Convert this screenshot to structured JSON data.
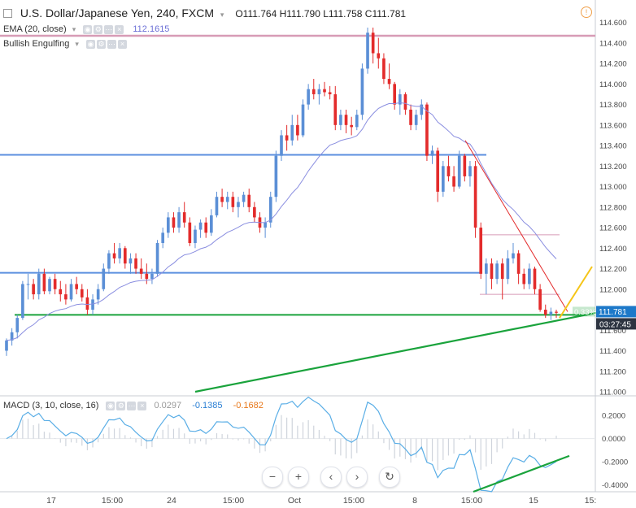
{
  "header": {
    "collapse_icon": "collapse-square-icon",
    "symbol_title": "U.S. Dollar/Japanese Yen, 240, FXCM",
    "ohlc": "O111.764  H111.790  L111.758  C111.781",
    "alert_icon": "clock-alert-icon",
    "alert_glyph": "!"
  },
  "indicators": {
    "ema_label": "EMA (20, close)",
    "ema_value": "112.1615",
    "bullish_label": "Bullish Engulfing",
    "macd_label": "MACD (3, 10, close, 16)",
    "macd_values": [
      "0.0297",
      "-0.1385",
      "-0.1682"
    ]
  },
  "colors": {
    "up": "#5b8fd6",
    "down": "#e32b2b",
    "ema": "#8a8ee0",
    "hline_blue": "#5b8fdf",
    "hline_pink": "#d79bb6",
    "hline_green": "#1aa33c",
    "trend_green": "#1aa33c",
    "trend_red": "#e32b2b",
    "trend_yellow": "#f5c518",
    "macd_line": "#5aaee6",
    "macd_hist": "#cfd4dc",
    "price_label_bg": "#1d79c9",
    "dark_label_bg": "#2d3441"
  },
  "price_axis": {
    "labels": [
      "114.600",
      "114.400",
      "114.200",
      "114.000",
      "113.800",
      "113.600",
      "113.400",
      "113.200",
      "113.000",
      "112.800",
      "112.600",
      "112.400",
      "112.200",
      "112.000",
      "111.800",
      "111.600",
      "111.400",
      "111.200",
      "111.000"
    ],
    "current_price": "111.781",
    "countdown": "03:27:45",
    "pct_label": "0.33%"
  },
  "macd_axis": {
    "labels": [
      "0.2000",
      "0.0000",
      "-0.2000",
      "-0.4000"
    ]
  },
  "time_axis": {
    "labels": [
      "17",
      "15:00",
      "24",
      "15:00",
      "Oct",
      "15:00",
      "8",
      "15:00",
      "15",
      "15:"
    ]
  },
  "navigation": {
    "zoom_out": "−",
    "zoom_in": "+",
    "scroll_left": "‹",
    "scroll_right": "›",
    "reset": "↻"
  },
  "chart_data": {
    "type": "candlestick",
    "title": "U.S. Dollar/Japanese Yen, 240, FXCM",
    "ylim": [
      111.0,
      114.7
    ],
    "ohlc": [
      [
        111.4,
        111.52,
        111.35,
        111.5
      ],
      [
        111.5,
        111.62,
        111.45,
        111.58
      ],
      [
        111.58,
        111.75,
        111.52,
        111.72
      ],
      [
        111.72,
        112.08,
        111.7,
        112.05
      ],
      [
        112.05,
        112.15,
        111.9,
        112.05
      ],
      [
        112.05,
        112.1,
        111.9,
        111.95
      ],
      [
        111.95,
        112.2,
        111.9,
        112.15
      ],
      [
        112.15,
        112.2,
        111.95,
        111.98
      ],
      [
        111.98,
        112.12,
        111.95,
        112.1
      ],
      [
        112.1,
        112.15,
        111.95,
        112.0
      ],
      [
        112.0,
        112.08,
        111.88,
        111.95
      ],
      [
        111.95,
        112.05,
        111.85,
        111.9
      ],
      [
        111.9,
        112.1,
        111.88,
        112.05
      ],
      [
        112.05,
        112.12,
        111.95,
        112.0
      ],
      [
        112.0,
        112.05,
        111.88,
        111.92
      ],
      [
        111.92,
        112.0,
        111.75,
        111.8
      ],
      [
        111.8,
        111.95,
        111.75,
        111.9
      ],
      [
        111.9,
        112.05,
        111.85,
        112.0
      ],
      [
        112.0,
        112.25,
        111.98,
        112.2
      ],
      [
        112.2,
        112.38,
        112.15,
        112.35
      ],
      [
        112.35,
        112.45,
        112.25,
        112.3
      ],
      [
        112.3,
        112.45,
        112.25,
        112.4
      ],
      [
        112.4,
        112.42,
        112.2,
        112.25
      ],
      [
        112.25,
        112.35,
        112.15,
        112.3
      ],
      [
        112.3,
        112.35,
        112.15,
        112.2
      ],
      [
        112.2,
        112.3,
        112.1,
        112.15
      ],
      [
        112.15,
        112.25,
        112.05,
        112.1
      ],
      [
        112.1,
        112.2,
        112.05,
        112.15
      ],
      [
        112.15,
        112.48,
        112.12,
        112.45
      ],
      [
        112.45,
        112.6,
        112.4,
        112.55
      ],
      [
        112.55,
        112.75,
        112.5,
        112.7
      ],
      [
        112.7,
        112.75,
        112.55,
        112.6
      ],
      [
        112.6,
        112.8,
        112.55,
        112.75
      ],
      [
        112.75,
        112.85,
        112.6,
        112.65
      ],
      [
        112.65,
        112.7,
        112.42,
        112.45
      ],
      [
        112.45,
        112.62,
        112.4,
        112.58
      ],
      [
        112.58,
        112.68,
        112.5,
        112.65
      ],
      [
        112.65,
        112.7,
        112.5,
        112.55
      ],
      [
        112.55,
        112.78,
        112.52,
        112.72
      ],
      [
        112.72,
        112.95,
        112.7,
        112.9
      ],
      [
        112.9,
        112.98,
        112.8,
        112.85
      ],
      [
        112.85,
        112.95,
        112.78,
        112.9
      ],
      [
        112.9,
        112.95,
        112.75,
        112.8
      ],
      [
        112.8,
        112.9,
        112.7,
        112.85
      ],
      [
        112.85,
        112.95,
        112.8,
        112.92
      ],
      [
        112.92,
        112.98,
        112.75,
        112.8
      ],
      [
        112.8,
        112.85,
        112.65,
        112.7
      ],
      [
        112.7,
        112.75,
        112.55,
        112.6
      ],
      [
        112.6,
        112.7,
        112.5,
        112.65
      ],
      [
        112.65,
        112.95,
        112.6,
        112.9
      ],
      [
        112.9,
        113.35,
        112.85,
        113.3
      ],
      [
        113.3,
        113.55,
        113.25,
        113.5
      ],
      [
        113.5,
        113.6,
        113.35,
        113.45
      ],
      [
        113.45,
        113.7,
        113.4,
        113.6
      ],
      [
        113.6,
        113.7,
        113.45,
        113.5
      ],
      [
        113.5,
        113.85,
        113.48,
        113.8
      ],
      [
        113.8,
        114.0,
        113.75,
        113.95
      ],
      [
        113.95,
        114.05,
        113.85,
        113.9
      ],
      [
        113.9,
        114.0,
        113.8,
        113.95
      ],
      [
        113.95,
        114.02,
        113.88,
        113.92
      ],
      [
        113.92,
        113.98,
        113.85,
        113.9
      ],
      [
        113.9,
        113.98,
        113.55,
        113.6
      ],
      [
        113.6,
        113.75,
        113.55,
        113.7
      ],
      [
        113.7,
        113.75,
        113.52,
        113.6
      ],
      [
        113.6,
        113.68,
        113.5,
        113.58
      ],
      [
        113.58,
        113.75,
        113.55,
        113.7
      ],
      [
        113.7,
        114.2,
        113.65,
        114.15
      ],
      [
        114.15,
        114.55,
        114.1,
        114.5
      ],
      [
        114.5,
        114.55,
        114.2,
        114.3
      ],
      [
        114.3,
        114.45,
        114.15,
        114.25
      ],
      [
        114.25,
        114.3,
        114.0,
        114.05
      ],
      [
        114.05,
        114.2,
        113.95,
        114.0
      ],
      [
        114.0,
        114.02,
        113.75,
        113.8
      ],
      [
        113.8,
        113.95,
        113.7,
        113.9
      ],
      [
        113.9,
        113.92,
        113.7,
        113.75
      ],
      [
        113.75,
        113.8,
        113.55,
        113.6
      ],
      [
        113.6,
        113.75,
        113.55,
        113.7
      ],
      [
        113.7,
        113.85,
        113.65,
        113.8
      ],
      [
        113.8,
        113.82,
        113.25,
        113.3
      ],
      [
        113.3,
        113.4,
        113.22,
        113.35
      ],
      [
        113.35,
        113.38,
        112.85,
        112.95
      ],
      [
        112.95,
        113.25,
        112.9,
        113.2
      ],
      [
        113.2,
        113.3,
        113.05,
        113.1
      ],
      [
        113.1,
        113.2,
        112.95,
        113.0
      ],
      [
        113.0,
        113.35,
        112.98,
        113.3
      ],
      [
        113.3,
        113.32,
        113.05,
        113.1
      ],
      [
        113.1,
        113.25,
        113.0,
        113.2
      ],
      [
        113.2,
        113.25,
        112.5,
        112.6
      ],
      [
        112.6,
        112.65,
        112.1,
        112.15
      ],
      [
        112.15,
        112.3,
        111.95,
        112.25
      ],
      [
        112.25,
        112.3,
        112.0,
        112.1
      ],
      [
        112.1,
        112.28,
        112.05,
        112.25
      ],
      [
        112.25,
        112.3,
        111.9,
        112.1
      ],
      [
        112.1,
        112.38,
        112.05,
        112.3
      ],
      [
        112.3,
        112.45,
        112.25,
        112.35
      ],
      [
        112.35,
        112.38,
        112.05,
        112.15
      ],
      [
        112.15,
        112.2,
        112.0,
        112.05
      ],
      [
        112.05,
        112.25,
        112.0,
        112.2
      ],
      [
        112.2,
        112.22,
        111.95,
        112.0
      ],
      [
        112.0,
        112.05,
        111.78,
        111.8
      ],
      [
        111.8,
        111.85,
        111.72,
        111.75
      ],
      [
        111.75,
        111.82,
        111.7,
        111.78
      ],
      [
        111.78,
        111.8,
        111.72,
        111.77
      ]
    ],
    "ema_20": "computed from close",
    "horizontal_levels": [
      114.47,
      113.31,
      112.16,
      111.75
    ],
    "macd_hist_sample": "derived from close"
  }
}
